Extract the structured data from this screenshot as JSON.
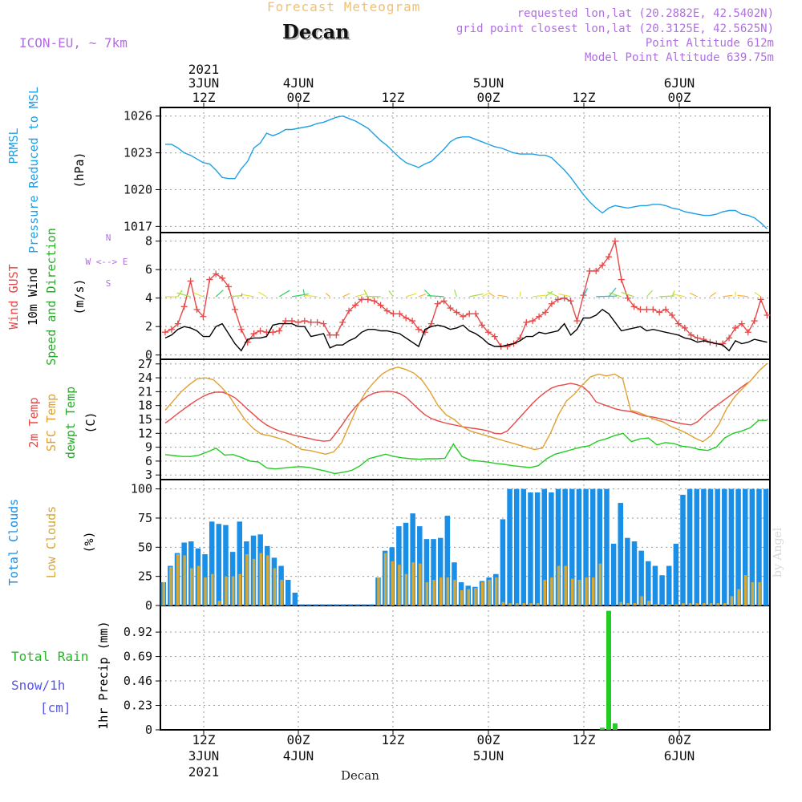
{
  "header": {
    "subtitle": "Forecast Meteogram",
    "title": "Decan",
    "model": "ICON-EU, ~ 7km",
    "requested": "requested lon,lat (20.2882E, 42.5402N)",
    "gridpoint": "grid point closest lon,lat (20.3125E, 42.5625N)",
    "point_alt": "Point Altitude 612m",
    "model_alt": "Model Point Altitude 639.75m"
  },
  "footer": {
    "location": "Decan",
    "watermark": "by Angel"
  },
  "colors": {
    "pressure": "#1ea0e6",
    "gust": "#e84848",
    "wind": "#000000",
    "temp": "#e84848",
    "sfc": "#e0a030",
    "dewpt": "#22cc22",
    "total_clouds": "#1a8fe8",
    "low_clouds": "#d4a838",
    "rain": "#22cc22",
    "snow": "#5555ee",
    "header_purple": "#b070e0"
  },
  "chart_data": [
    {
      "type": "line",
      "panel": "pressure",
      "xlabel_top": [
        "2021",
        "3JUN",
        "12Z",
        "4JUN",
        "00Z",
        "12Z",
        "5JUN",
        "00Z",
        "12Z",
        "6JUN",
        "00Z"
      ],
      "ylabel": [
        "PRMSL",
        "Pressure Reduced to MSL",
        "(hPa)"
      ],
      "yticks": [
        1017,
        1020,
        1023,
        1026
      ],
      "ylim": [
        1016.5,
        1026.7
      ],
      "x_hours": [
        0,
        1,
        2,
        3,
        4,
        5,
        6,
        7,
        8,
        9,
        10,
        11,
        12,
        13,
        14,
        15,
        16,
        17,
        18,
        19,
        20,
        21,
        22,
        23,
        24,
        25,
        26,
        27,
        28,
        29,
        30,
        31,
        32,
        33,
        34,
        35,
        36,
        37,
        38,
        39,
        40,
        41,
        42,
        43,
        44,
        45,
        46,
        47,
        48,
        49,
        50,
        51,
        52,
        53,
        54,
        55,
        56,
        57,
        58,
        59,
        60,
        61,
        62,
        63,
        64,
        65,
        66,
        67,
        68,
        69,
        70,
        71,
        72,
        73,
        74,
        75,
        76,
        77,
        78,
        79,
        80,
        81,
        82,
        83,
        84,
        85,
        86,
        87,
        88,
        89,
        90,
        91,
        92,
        93,
        94,
        95
      ],
      "series": [
        {
          "name": "PRMSL",
          "values": [
            1023.7,
            1023.7,
            1023.4,
            1023.0,
            1022.8,
            1022.5,
            1022.2,
            1022.1,
            1021.6,
            1021.0,
            1020.9,
            1020.9,
            1021.7,
            1022.3,
            1023.4,
            1023.8,
            1024.6,
            1024.4,
            1024.6,
            1024.9,
            1024.9,
            1025.0,
            1025.1,
            1025.2,
            1025.4,
            1025.5,
            1025.7,
            1025.9,
            1026.0,
            1025.8,
            1025.6,
            1025.3,
            1025.0,
            1024.5,
            1024.0,
            1023.6,
            1023.1,
            1022.6,
            1022.2,
            1022.0,
            1021.8,
            1022.1,
            1022.3,
            1022.8,
            1023.3,
            1023.9,
            1024.2,
            1024.3,
            1024.3,
            1024.1,
            1023.9,
            1023.7,
            1023.5,
            1023.4,
            1023.2,
            1023.0,
            1022.9,
            1022.9,
            1022.9,
            1022.8,
            1022.8,
            1022.6,
            1022.1,
            1021.6,
            1021.0,
            1020.3,
            1019.6,
            1019.0,
            1018.5,
            1018.1,
            1018.5,
            1018.7,
            1018.6,
            1018.5,
            1018.6,
            1018.7,
            1018.7,
            1018.8,
            1018.8,
            1018.7,
            1018.5,
            1018.4,
            1018.2,
            1018.1,
            1018.0,
            1017.9,
            1017.9,
            1018.0,
            1018.2,
            1018.3,
            1018.3,
            1018.0,
            1017.9,
            1017.7,
            1017.3,
            1016.8
          ]
        }
      ]
    },
    {
      "type": "line",
      "panel": "wind",
      "ylabel": [
        "Wind GUST",
        "10m Wind",
        "Speed and Direction",
        "(m/s)"
      ],
      "compass": [
        "N",
        "W <--> E",
        "S"
      ],
      "yticks": [
        0,
        2,
        4,
        6,
        8
      ],
      "ylim": [
        -0.3,
        8.6
      ],
      "series": [
        {
          "name": "Wind GUST",
          "values": [
            1.6,
            1.8,
            2.2,
            3.4,
            5.2,
            3.2,
            2.7,
            5.3,
            5.7,
            5.4,
            4.8,
            3.2,
            1.8,
            0.9,
            1.5,
            1.7,
            1.6,
            1.6,
            1.7,
            2.4,
            2.4,
            2.3,
            2.4,
            2.3,
            2.3,
            2.2,
            1.4,
            1.4,
            2.3,
            3.1,
            3.5,
            3.9,
            3.9,
            3.8,
            3.5,
            3.1,
            2.9,
            2.9,
            2.6,
            2.4,
            1.8,
            1.6,
            2.2,
            3.6,
            3.8,
            3.3,
            3.0,
            2.7,
            2.9,
            2.9,
            2.1,
            1.6,
            1.3,
            0.6,
            0.6,
            0.8,
            1.2,
            2.3,
            2.4,
            2.7,
            3.0,
            3.6,
            3.9,
            4.0,
            3.8,
            2.4,
            4.2,
            5.9,
            5.9,
            6.3,
            6.9,
            8.0,
            5.3,
            4.0,
            3.4,
            3.2,
            3.2,
            3.2,
            3.0,
            3.2,
            2.8,
            2.2,
            1.9,
            1.4,
            1.2,
            1.1,
            0.9,
            0.8,
            0.8,
            1.2,
            1.9,
            2.2,
            1.6,
            2.4,
            3.9,
            2.8
          ]
        },
        {
          "name": "10m Wind",
          "values": [
            1.2,
            1.4,
            1.8,
            2.0,
            1.9,
            1.7,
            1.3,
            1.3,
            2.0,
            2.2,
            1.5,
            0.8,
            0.3,
            1.1,
            1.2,
            1.2,
            1.3,
            2.1,
            2.2,
            2.2,
            2.2,
            2.0,
            2.0,
            1.3,
            1.4,
            1.5,
            0.5,
            0.7,
            0.7,
            1.0,
            1.2,
            1.6,
            1.8,
            1.8,
            1.7,
            1.7,
            1.6,
            1.5,
            1.2,
            0.9,
            0.6,
            1.8,
            2.0,
            2.1,
            2.0,
            1.8,
            1.9,
            2.1,
            1.7,
            1.5,
            1.2,
            0.8,
            0.6,
            0.6,
            0.7,
            0.8,
            1.0,
            1.3,
            1.3,
            1.6,
            1.5,
            1.6,
            1.7,
            2.2,
            1.4,
            1.8,
            2.6,
            2.6,
            2.8,
            3.2,
            2.9,
            2.3,
            1.7,
            1.8,
            1.9,
            2.0,
            1.7,
            1.8,
            1.7,
            1.6,
            1.5,
            1.4,
            1.2,
            1.1,
            0.9,
            1.0,
            0.9,
            0.8,
            0.7,
            0.3,
            1.0,
            0.8,
            0.9,
            1.1,
            1.0,
            0.9
          ]
        }
      ]
    },
    {
      "type": "line",
      "panel": "temperature",
      "ylabel": [
        "2m Temp",
        "SFC Temp",
        "dewpt Temp",
        "(C)"
      ],
      "yticks": [
        3,
        6,
        9,
        12,
        15,
        18,
        21,
        24,
        27
      ],
      "ylim": [
        2,
        28
      ],
      "series": [
        {
          "name": "2m Temp",
          "values": [
            14.2,
            15.2,
            16.3,
            17.3,
            18.3,
            19.2,
            20.0,
            20.6,
            20.9,
            20.9,
            20.4,
            19.7,
            18.5,
            17.2,
            16.0,
            14.8,
            13.8,
            13.1,
            12.5,
            12.1,
            11.7,
            11.4,
            11.1,
            10.8,
            10.5,
            10.3,
            10.4,
            12.1,
            14.0,
            16.0,
            17.7,
            19.1,
            20.1,
            20.7,
            21.0,
            21.1,
            21.0,
            20.6,
            19.8,
            18.5,
            17.2,
            16.0,
            15.2,
            14.7,
            14.3,
            14.0,
            13.7,
            13.4,
            13.2,
            13.0,
            12.8,
            12.5,
            12.0,
            11.9,
            12.5,
            14.0,
            15.5,
            17.0,
            18.5,
            19.8,
            20.9,
            21.8,
            22.3,
            22.5,
            22.8,
            22.5,
            22.0,
            20.7,
            18.8,
            18.3,
            17.8,
            17.3,
            17.0,
            16.8,
            16.5,
            16.0,
            15.7,
            15.5,
            15.2,
            14.9,
            14.6,
            14.2,
            14.0,
            13.8,
            14.5,
            15.8,
            17.0,
            18.0,
            19.0,
            20.0,
            21.0,
            22.0,
            23.0
          ]
        },
        {
          "name": "SFC Temp",
          "values": [
            17.0,
            19.0,
            21.0,
            22.5,
            23.8,
            24.0,
            23.6,
            22.0,
            20.0,
            17.3,
            14.8,
            13.0,
            11.8,
            11.5,
            11.0,
            10.5,
            9.5,
            8.5,
            8.3,
            7.9,
            7.5,
            8.0,
            10.0,
            14.0,
            18.0,
            21.0,
            23.0,
            24.8,
            25.8,
            26.3,
            25.8,
            25.0,
            23.5,
            21.0,
            18.0,
            16.0,
            15.0,
            13.5,
            12.5,
            12.0,
            11.5,
            11.0,
            10.5,
            10.0,
            9.5,
            9.0,
            8.5,
            8.8,
            12.0,
            16.0,
            19.0,
            20.5,
            22.5,
            24.2,
            24.8,
            24.4,
            24.8,
            23.8,
            17.0,
            16.5,
            15.8,
            15.0,
            14.5,
            13.5,
            12.8,
            12.0,
            11.0,
            10.2,
            11.5,
            14.0,
            17.5,
            20.0,
            21.8,
            23.5,
            25.5,
            27.1
          ]
        },
        {
          "name": "dewpt Temp",
          "values": [
            7.4,
            7.2,
            7.0,
            7.0,
            7.3,
            8.0,
            8.8,
            7.3,
            7.4,
            6.8,
            6.0,
            5.8,
            4.5,
            4.3,
            4.5,
            4.7,
            4.8,
            4.6,
            4.2,
            3.8,
            3.3,
            3.6,
            4.0,
            5.0,
            6.5,
            7.0,
            7.5,
            7.0,
            6.7,
            6.5,
            6.4,
            6.5,
            6.5,
            6.6,
            9.7,
            7.0,
            6.2,
            6.0,
            5.8,
            5.5,
            5.3,
            5.0,
            4.8,
            4.6,
            5.0,
            6.5,
            7.5,
            8.0,
            8.5,
            9.0,
            9.3,
            10.3,
            10.8,
            11.5,
            12.0,
            10.2,
            10.8,
            11.0,
            9.5,
            10.0,
            9.8,
            9.2,
            9.0,
            8.5,
            8.3,
            9.0,
            11.0,
            12.0,
            12.5,
            13.2,
            14.8,
            14.8
          ]
        }
      ]
    },
    {
      "type": "bar",
      "panel": "clouds",
      "ylabel": [
        "Total Clouds",
        "Low Clouds",
        "(%)"
      ],
      "yticks": [
        0,
        25,
        50,
        75,
        100
      ],
      "ylim": [
        0,
        108
      ],
      "series": [
        {
          "name": "Total Clouds",
          "values": [
            20,
            34,
            45,
            54,
            55,
            49,
            44,
            72,
            70,
            69,
            46,
            72,
            55,
            60,
            61,
            51,
            41,
            34,
            22,
            11,
            1,
            1,
            1,
            1,
            1,
            1,
            1,
            1,
            1,
            1,
            1,
            24,
            47,
            50,
            68,
            71,
            79,
            68,
            57,
            57,
            58,
            77,
            37,
            20,
            17,
            16,
            21,
            24,
            27,
            74,
            100,
            100,
            100,
            97,
            97,
            100,
            97,
            100,
            100,
            100,
            100,
            100,
            100,
            100,
            100,
            53,
            88,
            58,
            55,
            47,
            38,
            34,
            26,
            34,
            53,
            95,
            100,
            100,
            100,
            100,
            100,
            100,
            100,
            100,
            100,
            100,
            100,
            100
          ]
        },
        {
          "name": "Low Clouds",
          "values": [
            20,
            33,
            44,
            43,
            32,
            34,
            24,
            27,
            4,
            25,
            25,
            27,
            44,
            40,
            45,
            43,
            32,
            22,
            0,
            0,
            0,
            0,
            0,
            0,
            0,
            0,
            0,
            0,
            0,
            0,
            0,
            24,
            45,
            38,
            35,
            27,
            37,
            36,
            20,
            22,
            24,
            24,
            22,
            13,
            14,
            15,
            20,
            22,
            24,
            3,
            2,
            2,
            2,
            2,
            2,
            22,
            24,
            34,
            34,
            23,
            22,
            24,
            24,
            36,
            0,
            0,
            3,
            2,
            2,
            8,
            4,
            1,
            1,
            1,
            1,
            2,
            2,
            2,
            2,
            2,
            2,
            2,
            8,
            14,
            26,
            20,
            20
          ]
        }
      ]
    },
    {
      "type": "bar",
      "panel": "precip",
      "ylabel": [
        "1hr Precip (mm)"
      ],
      "legend": [
        "Total  Rain",
        "Snow/1h",
        "[cm]"
      ],
      "yticks": [
        0,
        0.23,
        0.46,
        0.69,
        0.92
      ],
      "ylim": [
        0,
        1.17
      ],
      "xlabel_bottom": [
        "12Z",
        "3JUN",
        "2021",
        "00Z",
        "4JUN",
        "12Z",
        "00Z",
        "5JUN",
        "12Z",
        "00Z",
        "6JUN"
      ],
      "series": [
        {
          "name": "Total Rain",
          "bars": [
            {
              "hour": 69,
              "value": 0.02
            },
            {
              "hour": 70,
              "value": 1.12
            },
            {
              "hour": 71,
              "value": 0.06
            }
          ]
        }
      ]
    }
  ]
}
